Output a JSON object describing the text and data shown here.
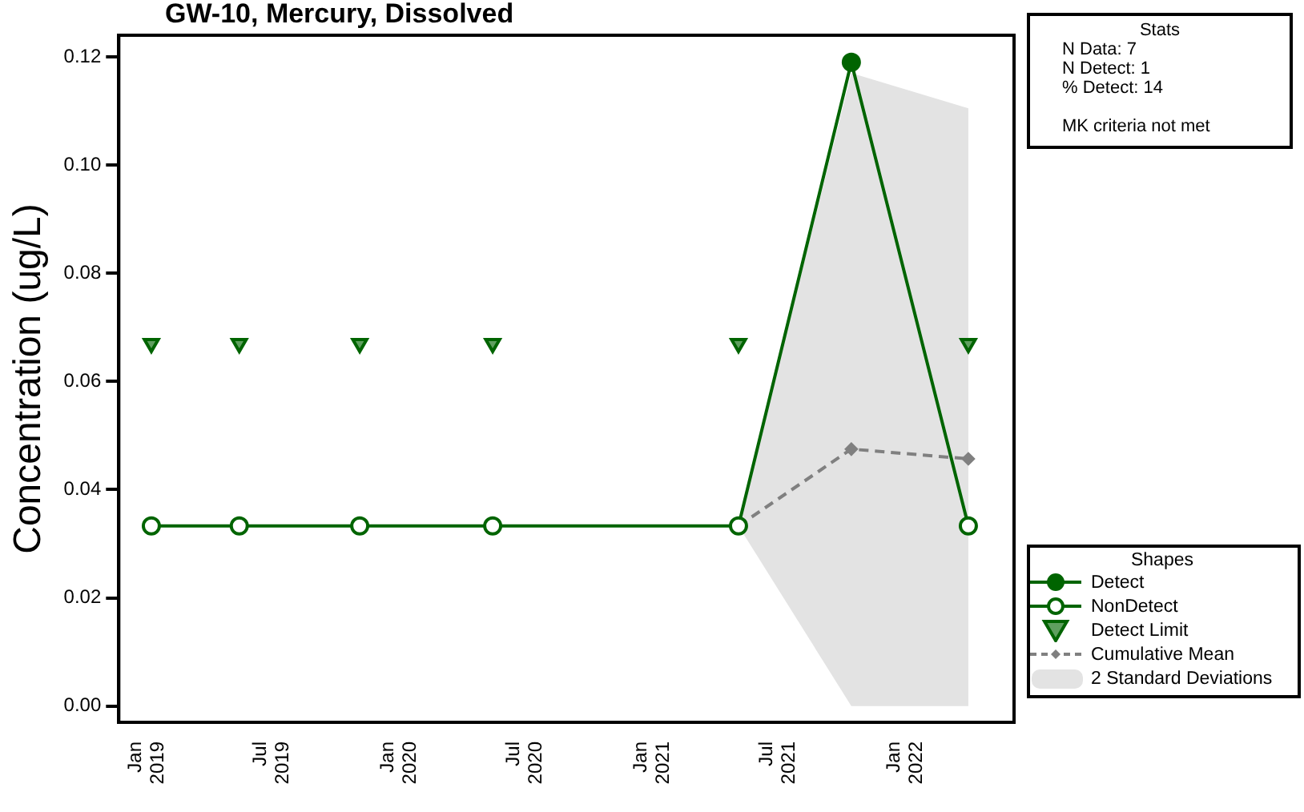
{
  "chart_data": {
    "type": "line",
    "title": "GW-10, Mercury, Dissolved",
    "ylabel": "Concentration (ug/L)",
    "xlim": [
      "2018-11-22",
      "2022-06-07"
    ],
    "xticks": [
      {
        "value": "2019-01",
        "label": "Jan 2019"
      },
      {
        "value": "2019-07",
        "label": "Jul 2019"
      },
      {
        "value": "2020-01",
        "label": "Jan 2020"
      },
      {
        "value": "2020-07",
        "label": "Jul 2020"
      },
      {
        "value": "2021-01",
        "label": "Jan 2021"
      },
      {
        "value": "2021-07",
        "label": "Jul 2021"
      },
      {
        "value": "2022-01",
        "label": "Jan 2022"
      }
    ],
    "ylim": [
      -0.003,
      0.124
    ],
    "yticks": [
      {
        "value": 0,
        "label": "0.00"
      },
      {
        "value": 0.02,
        "label": "0.02"
      },
      {
        "value": 0.04,
        "label": "0.04"
      },
      {
        "value": 0.06,
        "label": "0.06"
      },
      {
        "value": 0.08,
        "label": "0.08"
      },
      {
        "value": 0.1,
        "label": "0.10"
      },
      {
        "value": 0.12,
        "label": "0.12"
      }
    ],
    "grid": false,
    "legend": "bottom right",
    "legend_title": "Shapes",
    "annotations": [
      "Stats",
      "N Data: 7",
      "N Detect: 1",
      "% Detect: 14",
      "MK criteria not met",
      "2 Standard Deviations"
    ],
    "series": [
      {
        "color": "#006400",
        "marker": "none",
        "line_style": "solid",
        "x": [
          "2019-01-08",
          "2019-05-15",
          "2019-11-05",
          "2020-05-15",
          "2021-05-05",
          "2021-10-15",
          "2022-04-02"
        ],
        "values": [
          0.0333,
          0.0333,
          0.0333,
          0.0333,
          0.0333,
          0.119,
          0.0333
        ]
      },
      {
        "type": "line",
        "name": "Cumulative Mean",
        "color": "#808080",
        "marker": "diamond",
        "line_style": "dashed",
        "x": [
          "2021-05-05",
          "2021-10-15",
          "2022-04-02"
        ],
        "values": [
          0.0333,
          0.0475,
          0.0457
        ],
        "lower": [
          0.0333,
          0,
          0
        ],
        "upper": [
          0.0333,
          0.117,
          0.1105
        ]
      },
      {
        "type": "scatter",
        "name": "Detect",
        "color": "#006400",
        "marker": "circle",
        "x": [
          "2021-10-15"
        ],
        "values": [
          0.119
        ]
      },
      {
        "type": "scatter",
        "name": "NonDetect",
        "color": "#006400",
        "marker": "circle",
        "x": [
          "2019-01-08",
          "2019-05-15",
          "2019-11-05",
          "2020-05-15",
          "2021-05-05",
          "2022-04-02"
        ],
        "values": [
          0.0333,
          0.0333,
          0.0333,
          0.0333,
          0.0333,
          0.0333
        ]
      },
      {
        "type": "scatter",
        "name": "Detect Limit",
        "color": "#006400",
        "marker": "triangle",
        "x": [
          "2019-01-08",
          "2019-05-15",
          "2019-11-05",
          "2020-05-15",
          "2021-05-05",
          "2022-04-02"
        ],
        "values": [
          0.067,
          0.067,
          0.067,
          0.067,
          0.067,
          0.067
        ]
      }
    ]
  }
}
